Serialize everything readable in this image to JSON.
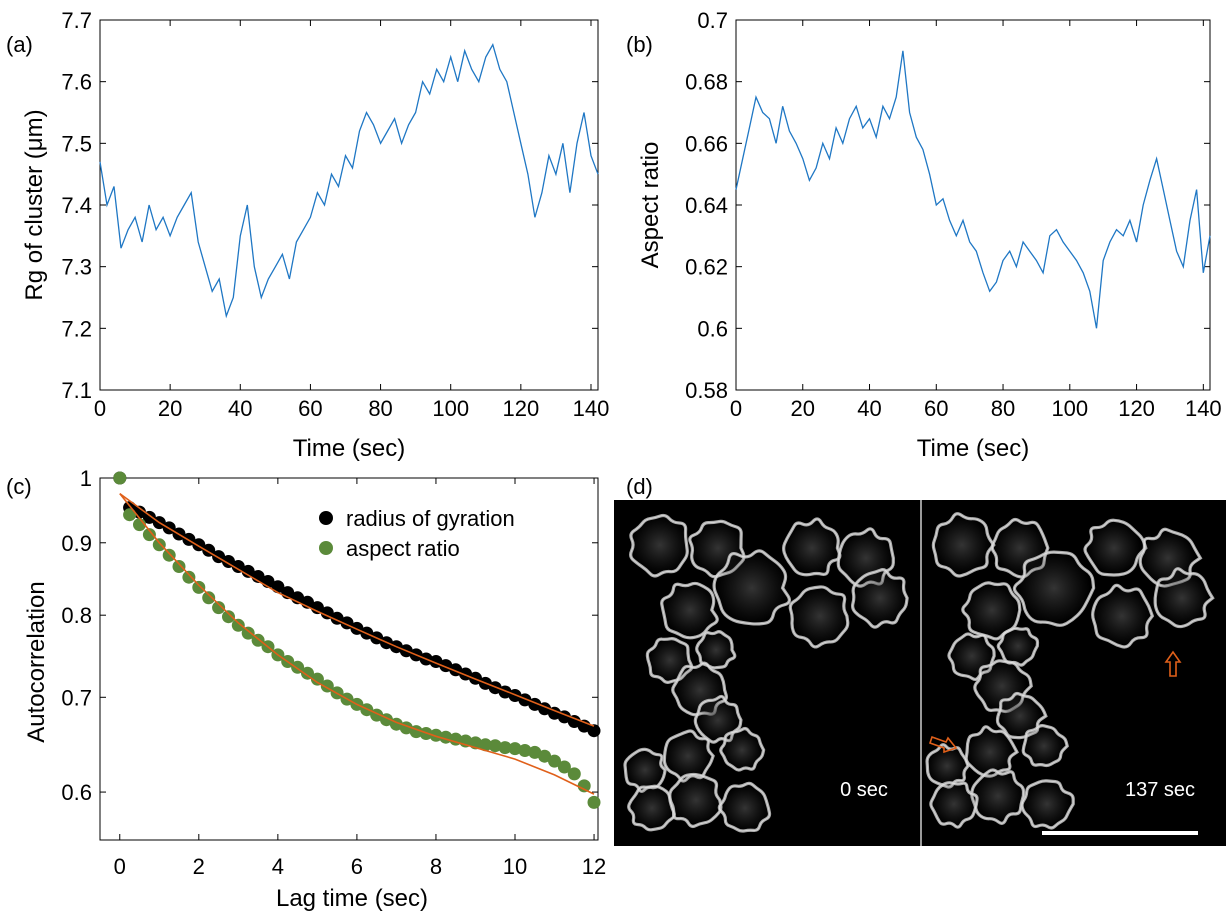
{
  "colors": {
    "rg_trace": "#1f77c4",
    "fit": "#e0601a",
    "rg_markers": "#000000",
    "ar_markers": "#5b8a3a",
    "axes": "#000000",
    "micrograph_bg": "#000000",
    "arrow": "#e0601a",
    "scale_bar": "#ffffff"
  },
  "panels": {
    "a": {
      "label": "(a)"
    },
    "b": {
      "label": "(b)"
    },
    "c": {
      "label": "(c)"
    },
    "d": {
      "label": "(d)",
      "left_time": "0 sec",
      "right_time": "137 sec",
      "icons": [
        "up-arrow-icon",
        "right-arrow-icon"
      ]
    }
  },
  "chart_data": [
    {
      "id": "a",
      "type": "line",
      "title": "",
      "xlabel": "Time (sec)",
      "ylabel": "Rg of cluster (μm)",
      "xlim": [
        0,
        142
      ],
      "ylim": [
        7.1,
        7.7
      ],
      "xticks": [
        0,
        20,
        40,
        60,
        80,
        100,
        120,
        140
      ],
      "yticks": [
        7.1,
        7.2,
        7.3,
        7.4,
        7.5,
        7.6,
        7.7
      ],
      "ytick_labels": [
        "7.1",
        "7.2",
        "7.3",
        "7.4",
        "7.5",
        "7.6",
        "7.7"
      ],
      "grid": false,
      "series": [
        {
          "x": [
            0,
            2,
            4,
            6,
            8,
            10,
            12,
            14,
            16,
            18,
            20,
            22,
            24,
            26,
            28,
            30,
            32,
            34,
            36,
            38,
            40,
            42,
            44,
            46,
            48,
            50,
            52,
            54,
            56,
            58,
            60,
            62,
            64,
            66,
            68,
            70,
            72,
            74,
            76,
            78,
            80,
            82,
            84,
            86,
            88,
            90,
            92,
            94,
            96,
            98,
            100,
            102,
            104,
            106,
            108,
            110,
            112,
            114,
            116,
            118,
            120,
            122,
            124,
            126,
            128,
            130,
            132,
            134,
            136,
            138,
            140,
            142
          ],
          "values": [
            7.47,
            7.4,
            7.43,
            7.33,
            7.36,
            7.38,
            7.34,
            7.4,
            7.36,
            7.38,
            7.35,
            7.38,
            7.4,
            7.42,
            7.34,
            7.3,
            7.26,
            7.28,
            7.22,
            7.25,
            7.35,
            7.4,
            7.3,
            7.25,
            7.28,
            7.3,
            7.32,
            7.28,
            7.34,
            7.36,
            7.38,
            7.42,
            7.4,
            7.45,
            7.43,
            7.48,
            7.46,
            7.52,
            7.55,
            7.53,
            7.5,
            7.52,
            7.54,
            7.5,
            7.53,
            7.55,
            7.6,
            7.58,
            7.62,
            7.6,
            7.64,
            7.6,
            7.65,
            7.62,
            7.6,
            7.64,
            7.66,
            7.62,
            7.6,
            7.55,
            7.5,
            7.45,
            7.38,
            7.42,
            7.48,
            7.45,
            7.5,
            7.42,
            7.5,
            7.55,
            7.48,
            7.45
          ]
        }
      ]
    },
    {
      "id": "b",
      "type": "line",
      "title": "",
      "xlabel": "Time (sec)",
      "ylabel": "Aspect ratio",
      "xlim": [
        0,
        142
      ],
      "ylim": [
        0.58,
        0.7
      ],
      "xticks": [
        0,
        20,
        40,
        60,
        80,
        100,
        120,
        140
      ],
      "yticks": [
        0.58,
        0.6,
        0.62,
        0.64,
        0.66,
        0.68,
        0.7
      ],
      "ytick_labels": [
        "0.58",
        "0.6",
        "0.62",
        "0.64",
        "0.66",
        "0.68",
        "0.7"
      ],
      "grid": false,
      "series": [
        {
          "x": [
            0,
            2,
            4,
            6,
            8,
            10,
            12,
            14,
            16,
            18,
            20,
            22,
            24,
            26,
            28,
            30,
            32,
            34,
            36,
            38,
            40,
            42,
            44,
            46,
            48,
            50,
            52,
            54,
            56,
            58,
            60,
            62,
            64,
            66,
            68,
            70,
            72,
            74,
            76,
            78,
            80,
            82,
            84,
            86,
            88,
            90,
            92,
            94,
            96,
            98,
            100,
            102,
            104,
            106,
            108,
            110,
            112,
            114,
            116,
            118,
            120,
            122,
            124,
            126,
            128,
            130,
            132,
            134,
            136,
            138,
            140,
            142
          ],
          "values": [
            0.645,
            0.655,
            0.665,
            0.675,
            0.67,
            0.668,
            0.66,
            0.672,
            0.664,
            0.66,
            0.655,
            0.648,
            0.652,
            0.66,
            0.655,
            0.665,
            0.66,
            0.668,
            0.672,
            0.665,
            0.668,
            0.662,
            0.672,
            0.668,
            0.675,
            0.69,
            0.67,
            0.662,
            0.658,
            0.65,
            0.64,
            0.642,
            0.635,
            0.63,
            0.635,
            0.628,
            0.625,
            0.618,
            0.612,
            0.615,
            0.622,
            0.625,
            0.62,
            0.628,
            0.625,
            0.622,
            0.618,
            0.63,
            0.632,
            0.628,
            0.625,
            0.622,
            0.618,
            0.612,
            0.6,
            0.622,
            0.628,
            0.632,
            0.63,
            0.635,
            0.628,
            0.64,
            0.648,
            0.655,
            0.645,
            0.635,
            0.625,
            0.62,
            0.635,
            0.645,
            0.618,
            0.63
          ]
        }
      ]
    },
    {
      "id": "c",
      "type": "scatter",
      "title": "",
      "xlabel": "Lag time (sec)",
      "ylabel": "Autocorrelation",
      "xlim": [
        -0.5,
        12.1
      ],
      "ylim": [
        0.555,
        1.0
      ],
      "log_y": true,
      "xticks": [
        0,
        2,
        4,
        6,
        8,
        10,
        12
      ],
      "yticks": [
        0.6,
        0.7,
        0.8,
        0.9,
        1.0
      ],
      "ytick_labels": [
        "0.6",
        "0.7",
        "0.8",
        "0.9",
        "1"
      ],
      "grid": false,
      "legend_position": "top-right",
      "x": [
        0,
        0.25,
        0.5,
        0.75,
        1.0,
        1.25,
        1.5,
        1.75,
        2.0,
        2.25,
        2.5,
        2.75,
        3.0,
        3.25,
        3.5,
        3.75,
        4.0,
        4.25,
        4.5,
        4.75,
        5.0,
        5.25,
        5.5,
        5.75,
        6.0,
        6.25,
        6.5,
        6.75,
        7.0,
        7.25,
        7.5,
        7.75,
        8.0,
        8.25,
        8.5,
        8.75,
        9.0,
        9.25,
        9.5,
        9.75,
        10.0,
        10.25,
        10.5,
        10.75,
        11.0,
        11.25,
        11.5,
        11.75,
        12.0
      ],
      "series": [
        {
          "name": "radius of gyration",
          "values": [
            1.0,
            0.953,
            0.946,
            0.938,
            0.93,
            0.922,
            0.913,
            0.905,
            0.897,
            0.889,
            0.88,
            0.873,
            0.866,
            0.859,
            0.852,
            0.845,
            0.838,
            0.83,
            0.823,
            0.817,
            0.81,
            0.803,
            0.796,
            0.79,
            0.783,
            0.777,
            0.771,
            0.765,
            0.76,
            0.755,
            0.75,
            0.745,
            0.742,
            0.737,
            0.732,
            0.727,
            0.722,
            0.716,
            0.711,
            0.706,
            0.702,
            0.697,
            0.692,
            0.687,
            0.682,
            0.678,
            0.673,
            0.668,
            0.663
          ]
        },
        {
          "name": "aspect ratio",
          "values": [
            1.0,
            0.942,
            0.927,
            0.912,
            0.897,
            0.882,
            0.866,
            0.851,
            0.837,
            0.823,
            0.81,
            0.798,
            0.787,
            0.777,
            0.768,
            0.76,
            0.75,
            0.742,
            0.735,
            0.728,
            0.721,
            0.713,
            0.705,
            0.698,
            0.692,
            0.686,
            0.68,
            0.675,
            0.67,
            0.666,
            0.662,
            0.66,
            0.658,
            0.656,
            0.654,
            0.652,
            0.65,
            0.648,
            0.647,
            0.645,
            0.644,
            0.642,
            0.64,
            0.636,
            0.631,
            0.625,
            0.618,
            0.606,
            0.59
          ]
        }
      ],
      "fits": [
        {
          "x": [
            0,
            1,
            2,
            3,
            4,
            5,
            6,
            7,
            8,
            9,
            10,
            11,
            12
          ],
          "values": [
            0.975,
            0.93,
            0.895,
            0.862,
            0.83,
            0.805,
            0.782,
            0.76,
            0.74,
            0.721,
            0.703,
            0.685,
            0.668
          ]
        },
        {
          "x": [
            0,
            1,
            2,
            3,
            4,
            5,
            6,
            7,
            8,
            9,
            10,
            11,
            12
          ],
          "values": [
            0.975,
            0.9,
            0.84,
            0.79,
            0.75,
            0.717,
            0.692,
            0.672,
            0.657,
            0.645,
            0.633,
            0.617,
            0.598
          ]
        }
      ]
    }
  ]
}
